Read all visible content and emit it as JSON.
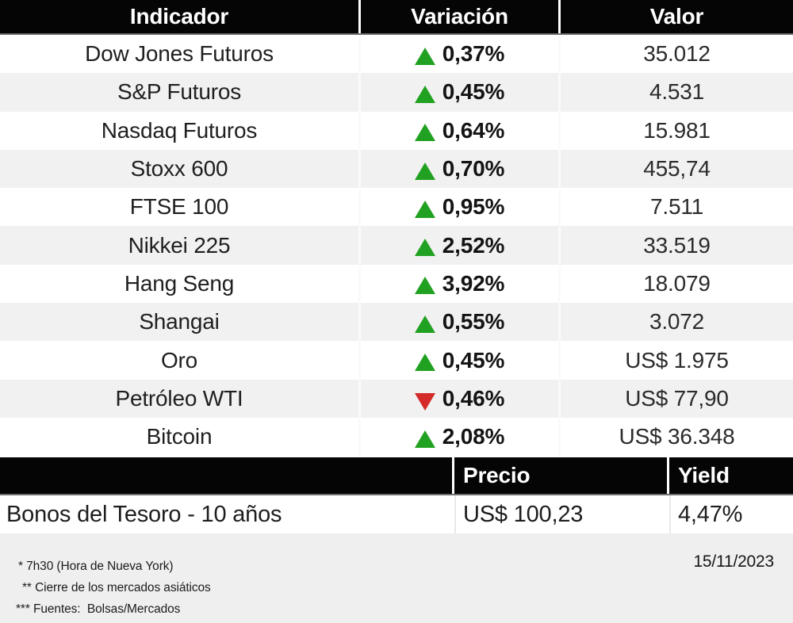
{
  "colors": {
    "positive": "#21a121",
    "negative": "#d42a2a",
    "header_bg": "#050505",
    "row_alt": "#f1f1f1",
    "footer_bg": "#efefef"
  },
  "table1": {
    "headers": [
      "Indicador",
      "Variación",
      "Valor"
    ],
    "rows": [
      {
        "indicator": "Dow Jones Futuros",
        "direction": "up",
        "variation": "0,37%",
        "value": "35.012"
      },
      {
        "indicator": "S&P Futuros",
        "direction": "up",
        "variation": "0,45%",
        "value": "4.531"
      },
      {
        "indicator": "Nasdaq Futuros",
        "direction": "up",
        "variation": "0,64%",
        "value": "15.981"
      },
      {
        "indicator": "Stoxx 600",
        "direction": "up",
        "variation": "0,70%",
        "value": "455,74"
      },
      {
        "indicator": "FTSE 100",
        "direction": "up",
        "variation": "0,95%",
        "value": "7.511"
      },
      {
        "indicator": "Nikkei 225",
        "direction": "up",
        "variation": "2,52%",
        "value": "33.519"
      },
      {
        "indicator": "Hang Seng",
        "direction": "up",
        "variation": "3,92%",
        "value": "18.079"
      },
      {
        "indicator": "Shangai",
        "direction": "up",
        "variation": "0,55%",
        "value": "3.072"
      },
      {
        "indicator": "Oro",
        "direction": "up",
        "variation": "0,45%",
        "value": "US$ 1.975"
      },
      {
        "indicator": "Petróleo WTI",
        "direction": "down",
        "variation": "0,46%",
        "value": "US$ 77,90"
      },
      {
        "indicator": "Bitcoin",
        "direction": "up",
        "variation": "2,08%",
        "value": "US$ 36.348"
      }
    ]
  },
  "table2": {
    "headers": [
      "",
      "Precio",
      "Yield"
    ],
    "rows": [
      {
        "name": "Bonos del Tesoro - 10 años",
        "price": "US$ 100,23",
        "yield": "4,47%"
      }
    ]
  },
  "footer": {
    "notes": [
      "* 7h30 (Hora de Nueva York)",
      "** Cierre de los mercados asiáticos",
      "*** Fuentes:  Bolsas/Mercados"
    ],
    "date": "15/11/2023"
  },
  "chart_data": {
    "type": "table",
    "tables": [
      {
        "columns": [
          "Indicador",
          "Variación",
          "Valor"
        ],
        "rows": [
          [
            "Dow Jones Futuros",
            "+0,37%",
            "35.012"
          ],
          [
            "S&P Futuros",
            "+0,45%",
            "4.531"
          ],
          [
            "Nasdaq Futuros",
            "+0,64%",
            "15.981"
          ],
          [
            "Stoxx 600",
            "+0,70%",
            "455,74"
          ],
          [
            "FTSE 100",
            "+0,95%",
            "7.511"
          ],
          [
            "Nikkei 225",
            "+2,52%",
            "33.519"
          ],
          [
            "Hang Seng",
            "+3,92%",
            "18.079"
          ],
          [
            "Shangai",
            "+0,55%",
            "3.072"
          ],
          [
            "Oro",
            "+0,45%",
            "US$ 1.975"
          ],
          [
            "Petróleo WTI",
            "-0,46%",
            "US$ 77,90"
          ],
          [
            "Bitcoin",
            "+2,08%",
            "US$ 36.348"
          ]
        ]
      },
      {
        "columns": [
          "",
          "Precio",
          "Yield"
        ],
        "rows": [
          [
            "Bonos del Tesoro - 10 años",
            "US$ 100,23",
            "4,47%"
          ]
        ]
      }
    ],
    "notes": [
      "* 7h30 (Hora de Nueva York)",
      "** Cierre de los mercados asiáticos",
      "*** Fuentes:  Bolsas/Mercados"
    ],
    "date": "15/11/2023"
  }
}
